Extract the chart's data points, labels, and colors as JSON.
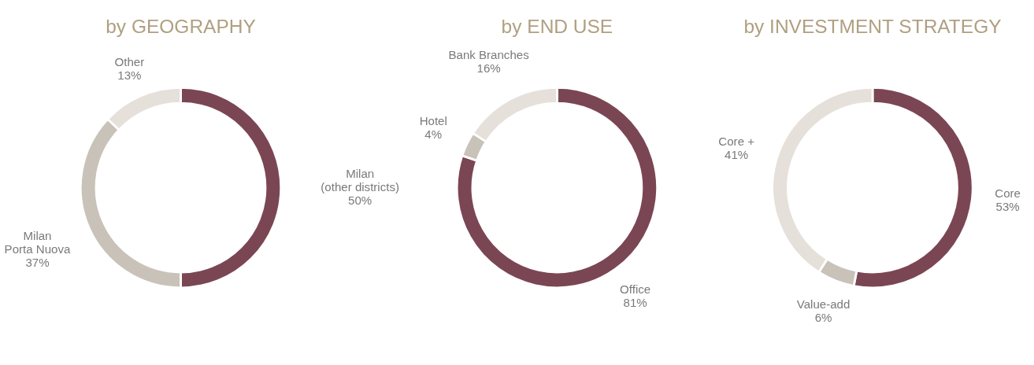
{
  "chart_data": [
    {
      "type": "donut",
      "title": "by GEOGRAPHY",
      "categories": [
        "Milan\n(other districts)",
        "Milan\nPorta Nuova",
        "Other"
      ],
      "values": [
        50,
        37,
        13
      ],
      "value_labels": [
        "50%",
        "37%",
        "13%"
      ],
      "colors": [
        "#7b4654",
        "#c9c2b8",
        "#e6e0da"
      ]
    },
    {
      "type": "donut",
      "title": "by END USE",
      "categories": [
        "Office",
        "Hotel",
        "Bank Branches"
      ],
      "values": [
        81,
        4,
        16
      ],
      "value_labels": [
        "81%",
        "4%",
        "16%"
      ],
      "colors": [
        "#7b4654",
        "#c9c2b8",
        "#e6e0da"
      ]
    },
    {
      "type": "donut",
      "title": "by INVESTMENT STRATEGY",
      "categories": [
        "Core",
        "Value-add",
        "Core +"
      ],
      "values": [
        53,
        6,
        41
      ],
      "value_labels": [
        "53%",
        "6%",
        "41%"
      ],
      "colors": [
        "#7b4654",
        "#c9c2b8",
        "#e6e0da"
      ]
    }
  ]
}
